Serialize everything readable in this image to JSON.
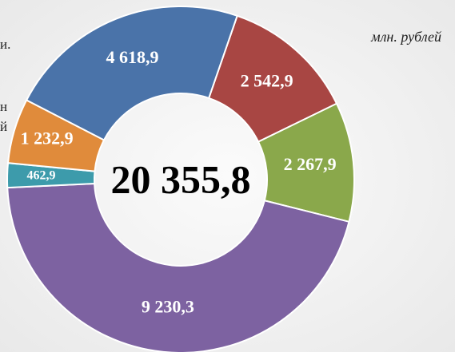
{
  "chart_data": {
    "type": "donut",
    "unit_note": "млн. рублей",
    "center_label": "20 355,8",
    "annotations": [
      "и.",
      "н",
      "й"
    ],
    "categories": [
      null,
      null,
      null,
      null,
      null,
      null
    ],
    "values": [
      2542.9,
      2267.9,
      9230.3,
      462.9,
      1232.9,
      4618.9
    ],
    "value_labels": [
      "2 542,9",
      "2 267,9",
      "9 230,3",
      "462,9",
      "1 232,9",
      "4 618,9"
    ],
    "colors": [
      "#a84643",
      "#8aa84b",
      "#7d62a1",
      "#3d9bab",
      "#e08b3b",
      "#4a73a9"
    ],
    "start_angle": 19
  }
}
